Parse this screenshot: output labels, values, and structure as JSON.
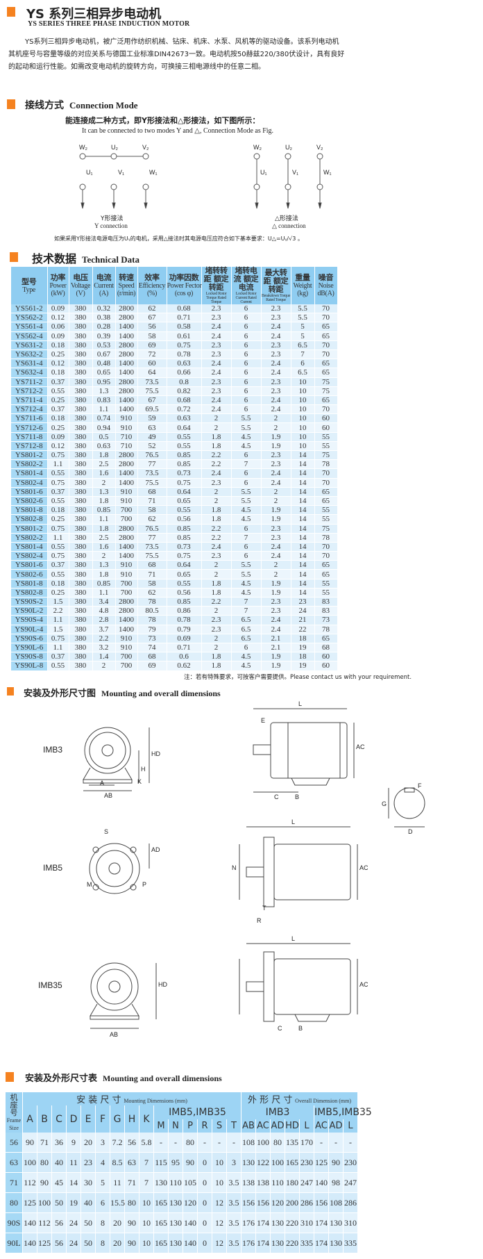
{
  "header": {
    "title": "YS 系列三相异步电动机",
    "subtitle": "YS SERIES THREE PHASE INDUCTION MOTOR"
  },
  "intro": "YS系列三相异步电动机，被广泛用作纺织机械、钻床、机床、水泵、风机等的驱动设备。该系列电动机其机座号与容量等级的对应关系与德国工业标准DIN42673一致。电动机按50赫兹220/380伏设计，具有良好的起动和运行性能。如需改变电动机的旋转方向，可换接三相电源线中的任意二相。",
  "connection": {
    "title_cn": "接线方式",
    "title_en": "Connection Mode",
    "desc_cn": "能连接成二种方式，即Y形接法和△形接法，如下图所示：",
    "desc_en": "It can be connected to two modes Y and △, Connection Mode as Fig.",
    "terminals_top": [
      "W₂",
      "U₂",
      "V₂"
    ],
    "terminals_bottom": [
      "U₁",
      "V₁",
      "W₁"
    ],
    "y_cn": "Y形接法",
    "y_en": "Y connection",
    "d_cn": "△形接法",
    "d_en": "△ connection",
    "note": "如果采用Y形接法电源电压为Uᵧ的电机，采用△接法时其电源电压应符合如下基本要求：U△=Uᵧ/√3 。"
  },
  "tech": {
    "title_cn": "技术数据",
    "title_en": "Technical Data",
    "headers": [
      [
        "型号",
        "Type",
        ""
      ],
      [
        "功率",
        "Power",
        "(kW)"
      ],
      [
        "电压",
        "Voltage",
        "(V)"
      ],
      [
        "电流",
        "Current",
        "(A)"
      ],
      [
        "转速",
        "Speed",
        "(r/min)"
      ],
      [
        "效率",
        "Efficiency",
        "(%)"
      ],
      [
        "功率因数",
        "Power Fector",
        "(cos φ)"
      ],
      [
        "堵转转距 额定转距",
        "Locked Rotor Torque Rated Torque",
        ""
      ],
      [
        "堵转电流 额定电流",
        "Locked Rotor Current Rated Current",
        ""
      ],
      [
        "最大转距 额定转距",
        "Breakdown Torque Rated Torque",
        ""
      ],
      [
        "重量",
        "Weight",
        "(kg)"
      ],
      [
        "噪音",
        "Noise",
        "dB(A)"
      ]
    ],
    "rows": [
      [
        "YS561-2",
        "0.09",
        "380",
        "0.32",
        "2800",
        "62",
        "0.68",
        "2.3",
        "6",
        "2.3",
        "5.5",
        "70"
      ],
      [
        "YS562-2",
        "0.12",
        "380",
        "0.38",
        "2800",
        "67",
        "0.71",
        "2.3",
        "6",
        "2.3",
        "5.5",
        "70"
      ],
      [
        "YS561-4",
        "0.06",
        "380",
        "0.28",
        "1400",
        "56",
        "0.58",
        "2.4",
        "6",
        "2.4",
        "5",
        "65"
      ],
      [
        "YS562-4",
        "0.09",
        "380",
        "0.39",
        "1400",
        "58",
        "0.61",
        "2.4",
        "6",
        "2.4",
        "5",
        "65"
      ],
      [
        "YS631-2",
        "0.18",
        "380",
        "0.53",
        "2800",
        "69",
        "0.75",
        "2.3",
        "6",
        "2.3",
        "6.5",
        "70"
      ],
      [
        "YS632-2",
        "0.25",
        "380",
        "0.67",
        "2800",
        "72",
        "0.78",
        "2.3",
        "6",
        "2.3",
        "7",
        "70"
      ],
      [
        "YS631-4",
        "0.12",
        "380",
        "0.48",
        "1400",
        "60",
        "0.63",
        "2.4",
        "6",
        "2.4",
        "6",
        "65"
      ],
      [
        "YS632-4",
        "0.18",
        "380",
        "0.65",
        "1400",
        "64",
        "0.66",
        "2.4",
        "6",
        "2.4",
        "6.5",
        "65"
      ],
      [
        "YS711-2",
        "0.37",
        "380",
        "0.95",
        "2800",
        "73.5",
        "0.8",
        "2.3",
        "6",
        "2.3",
        "10",
        "75"
      ],
      [
        "YS712-2",
        "0.55",
        "380",
        "1.3",
        "2800",
        "75.5",
        "0.82",
        "2.3",
        "6",
        "2.3",
        "10",
        "75"
      ],
      [
        "YS711-4",
        "0.25",
        "380",
        "0.83",
        "1400",
        "67",
        "0.68",
        "2.4",
        "6",
        "2.4",
        "10",
        "65"
      ],
      [
        "YS712-4",
        "0.37",
        "380",
        "1.1",
        "1400",
        "69.5",
        "0.72",
        "2.4",
        "6",
        "2.4",
        "10",
        "70"
      ],
      [
        "YS711-6",
        "0.18",
        "380",
        "0.74",
        "910",
        "59",
        "0.63",
        "2",
        "5.5",
        "2",
        "10",
        "60"
      ],
      [
        "YS712-6",
        "0.25",
        "380",
        "0.94",
        "910",
        "63",
        "0.64",
        "2",
        "5.5",
        "2",
        "10",
        "60"
      ],
      [
        "YS711-8",
        "0.09",
        "380",
        "0.5",
        "710",
        "49",
        "0.55",
        "1.8",
        "4.5",
        "1.9",
        "10",
        "55"
      ],
      [
        "YS712-8",
        "0.12",
        "380",
        "0.63",
        "710",
        "52",
        "0.55",
        "1.8",
        "4.5",
        "1.9",
        "10",
        "55"
      ],
      [
        "YS801-2",
        "0.75",
        "380",
        "1.8",
        "2800",
        "76.5",
        "0.85",
        "2.2",
        "6",
        "2.3",
        "14",
        "75"
      ],
      [
        "YS802-2",
        "1.1",
        "380",
        "2.5",
        "2800",
        "77",
        "0.85",
        "2.2",
        "7",
        "2.3",
        "14",
        "78"
      ],
      [
        "YS801-4",
        "0.55",
        "380",
        "1.6",
        "1400",
        "73.5",
        "0.73",
        "2.4",
        "6",
        "2.4",
        "14",
        "70"
      ],
      [
        "YS802-4",
        "0.75",
        "380",
        "2",
        "1400",
        "75.5",
        "0.75",
        "2.3",
        "6",
        "2.4",
        "14",
        "70"
      ],
      [
        "YS801-6",
        "0.37",
        "380",
        "1.3",
        "910",
        "68",
        "0.64",
        "2",
        "5.5",
        "2",
        "14",
        "65"
      ],
      [
        "YS802-6",
        "0.55",
        "380",
        "1.8",
        "910",
        "71",
        "0.65",
        "2",
        "5.5",
        "2",
        "14",
        "65"
      ],
      [
        "YS801-8",
        "0.18",
        "380",
        "0.85",
        "700",
        "58",
        "0.55",
        "1.8",
        "4.5",
        "1.9",
        "14",
        "55"
      ],
      [
        "YS802-8",
        "0.25",
        "380",
        "1.1",
        "700",
        "62",
        "0.56",
        "1.8",
        "4.5",
        "1.9",
        "14",
        "55"
      ],
      [
        "YS801-2",
        "0.75",
        "380",
        "1.8",
        "2800",
        "76.5",
        "0.85",
        "2.2",
        "6",
        "2.3",
        "14",
        "75"
      ],
      [
        "YS802-2",
        "1.1",
        "380",
        "2.5",
        "2800",
        "77",
        "0.85",
        "2.2",
        "7",
        "2.3",
        "14",
        "78"
      ],
      [
        "YS801-4",
        "0.55",
        "380",
        "1.6",
        "1400",
        "73.5",
        "0.73",
        "2.4",
        "6",
        "2.4",
        "14",
        "70"
      ],
      [
        "YS802-4",
        "0.75",
        "380",
        "2",
        "1400",
        "75.5",
        "0.75",
        "2.3",
        "6",
        "2.4",
        "14",
        "70"
      ],
      [
        "YS801-6",
        "0.37",
        "380",
        "1.3",
        "910",
        "68",
        "0.64",
        "2",
        "5.5",
        "2",
        "14",
        "65"
      ],
      [
        "YS802-6",
        "0.55",
        "380",
        "1.8",
        "910",
        "71",
        "0.65",
        "2",
        "5.5",
        "2",
        "14",
        "65"
      ],
      [
        "YS801-8",
        "0.18",
        "380",
        "0.85",
        "700",
        "58",
        "0.55",
        "1.8",
        "4.5",
        "1.9",
        "14",
        "55"
      ],
      [
        "YS802-8",
        "0.25",
        "380",
        "1.1",
        "700",
        "62",
        "0.56",
        "1.8",
        "4.5",
        "1.9",
        "14",
        "55"
      ],
      [
        "YS90S-2",
        "1.5",
        "380",
        "3.4",
        "2800",
        "78",
        "0.85",
        "2.2",
        "7",
        "2.3",
        "23",
        "83"
      ],
      [
        "YS90L-2",
        "2.2",
        "380",
        "4.8",
        "2800",
        "80.5",
        "0.86",
        "2",
        "7",
        "2.3",
        "24",
        "83"
      ],
      [
        "YS90S-4",
        "1.1",
        "380",
        "2.8",
        "1400",
        "78",
        "0.78",
        "2.3",
        "6.5",
        "2.4",
        "21",
        "73"
      ],
      [
        "YS90L-4",
        "1.5",
        "380",
        "3.7",
        "1400",
        "79",
        "0.79",
        "2.3",
        "6.5",
        "2.4",
        "22",
        "78"
      ],
      [
        "YS90S-6",
        "0.75",
        "380",
        "2.2",
        "910",
        "73",
        "0.69",
        "2",
        "6.5",
        "2.1",
        "18",
        "65"
      ],
      [
        "YS90L-6",
        "1.1",
        "380",
        "3.2",
        "910",
        "74",
        "0.71",
        "2",
        "6",
        "2.1",
        "19",
        "68"
      ],
      [
        "YS90S-8",
        "0.37",
        "380",
        "1.4",
        "700",
        "68",
        "0.6",
        "1.8",
        "4.5",
        "1.9",
        "18",
        "60"
      ],
      [
        "YS90L-8",
        "0.55",
        "380",
        "2",
        "700",
        "69",
        "0.62",
        "1.8",
        "4.5",
        "1.9",
        "19",
        "60"
      ]
    ],
    "note": "注：若有特殊要求，可按客户需要提供。Please contact us with your requirement."
  },
  "drawings": {
    "title_cn": "安装及外形尺寸图",
    "title_en": "Mounting and overall dimensions",
    "labels": [
      "IMB3",
      "IMB5",
      "IMB35"
    ],
    "dims": {
      "L": "L",
      "E": "E",
      "AC": "AC",
      "HD": "HD",
      "H": "H",
      "A": "A",
      "AB": "AB",
      "K": "K",
      "C": "C",
      "B": "B",
      "F": "F",
      "G": "G",
      "D": "D",
      "S": "S",
      "M": "M",
      "P": "P",
      "AD": "AD",
      "N": "N",
      "T": "T",
      "R": "R"
    }
  },
  "dimtable": {
    "title_cn": "安装及外形尺寸表",
    "title_en": "Mounting and overall dimensions",
    "frame_cn": "机座号",
    "frame_en": "Frame Size",
    "mount_cn": "安 装 尺 寸",
    "mount_en": "Mounting Dimensions (mm)",
    "overall_cn": "外 形 尺 寸",
    "overall_en": "Overall Dimension (mm)",
    "group_imb5": "IMB5,IMB35",
    "group_imb3": "IMB3",
    "group_imb5b": "IMB5,IMB35",
    "cols_a": [
      "A",
      "B",
      "C",
      "D",
      "E",
      "F",
      "G",
      "H",
      "K"
    ],
    "cols_m": [
      "M",
      "N",
      "P",
      "R",
      "S",
      "T"
    ],
    "cols_o": [
      "AB",
      "AC",
      "AD",
      "HD",
      "L"
    ],
    "cols_o2": [
      "AC",
      "AD",
      "L"
    ],
    "rows": [
      [
        "56",
        "90",
        "71",
        "36",
        "9",
        "20",
        "3",
        "7.2",
        "56",
        "5.8",
        "-",
        "-",
        "80",
        "-",
        "-",
        "-",
        "108",
        "100",
        "80",
        "135",
        "170",
        "-",
        "-",
        "-"
      ],
      [
        "63",
        "100",
        "80",
        "40",
        "11",
        "23",
        "4",
        "8.5",
        "63",
        "7",
        "115",
        "95",
        "90",
        "0",
        "10",
        "3",
        "130",
        "122",
        "100",
        "165",
        "230",
        "125",
        "90",
        "230"
      ],
      [
        "71",
        "112",
        "90",
        "45",
        "14",
        "30",
        "5",
        "11",
        "71",
        "7",
        "130",
        "110",
        "105",
        "0",
        "10",
        "3.5",
        "138",
        "138",
        "110",
        "180",
        "247",
        "140",
        "98",
        "247"
      ],
      [
        "80",
        "125",
        "100",
        "50",
        "19",
        "40",
        "6",
        "15.5",
        "80",
        "10",
        "165",
        "130",
        "120",
        "0",
        "12",
        "3.5",
        "156",
        "156",
        "120",
        "200",
        "286",
        "156",
        "108",
        "286"
      ],
      [
        "90S",
        "140",
        "112",
        "56",
        "24",
        "50",
        "8",
        "20",
        "90",
        "10",
        "165",
        "130",
        "140",
        "0",
        "12",
        "3.5",
        "176",
        "174",
        "130",
        "220",
        "310",
        "174",
        "130",
        "310"
      ],
      [
        "90L",
        "140",
        "125",
        "56",
        "24",
        "50",
        "8",
        "20",
        "90",
        "10",
        "165",
        "130",
        "140",
        "0",
        "12",
        "3.5",
        "176",
        "174",
        "130",
        "220",
        "335",
        "174",
        "130",
        "335"
      ]
    ]
  },
  "colors": {
    "accent": "#f58220",
    "header_blue": "#8fcdf1",
    "row_blue": "#dff0fb"
  }
}
